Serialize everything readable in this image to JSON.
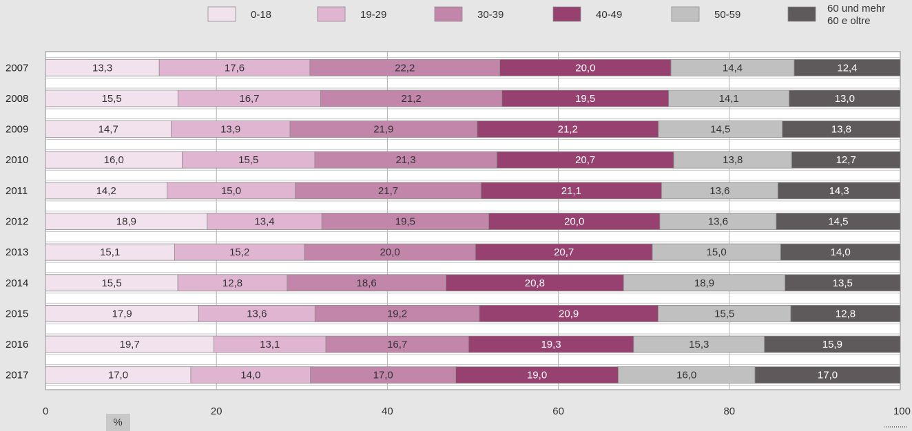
{
  "chart_data": {
    "type": "bar",
    "orientation": "horizontal",
    "stacked": true,
    "unit_label": "%",
    "categories": [
      "2007",
      "2008",
      "2009",
      "2010",
      "2011",
      "2012",
      "2013",
      "2014",
      "2015",
      "2016",
      "2017"
    ],
    "series": [
      {
        "name": "0-18",
        "color": "#f2e2ee",
        "label_color": "#333333",
        "values": [
          "13,3",
          "15,5",
          "14,7",
          "16,0",
          "14,2",
          "18,9",
          "15,1",
          "15,5",
          "17,9",
          "19,7",
          "17,0"
        ]
      },
      {
        "name": "19-29",
        "color": "#e0b5d2",
        "label_color": "#333333",
        "values": [
          "17,6",
          "16,7",
          "13,9",
          "15,5",
          "15,0",
          "13,4",
          "15,2",
          "12,8",
          "13,6",
          "13,1",
          "14,0"
        ]
      },
      {
        "name": "30-39",
        "color": "#c286ab",
        "label_color": "#333333",
        "values": [
          "22,2",
          "21,2",
          "21,9",
          "21,3",
          "21,7",
          "19,5",
          "20,0",
          "18,6",
          "19,2",
          "16,7",
          "17,0"
        ]
      },
      {
        "name": "40-49",
        "color": "#96416f",
        "label_color": "#ffffff",
        "values": [
          "20,0",
          "19,5",
          "21,2",
          "20,7",
          "21,1",
          "20,0",
          "20,7",
          "20,8",
          "20,9",
          "19,3",
          "19,0"
        ]
      },
      {
        "name": "50-59",
        "color": "#c0c0c0",
        "label_color": "#333333",
        "values": [
          "14,4",
          "14,1",
          "14,5",
          "13,8",
          "13,6",
          "13,6",
          "15,0",
          "18,9",
          "15,5",
          "15,3",
          "16,0"
        ]
      },
      {
        "name": [
          "60 und mehr",
          "60 e oltre"
        ],
        "color": "#5e5a5b",
        "label_color": "#ffffff",
        "values": [
          "12,4",
          "13,0",
          "13,8",
          "12,7",
          "14,3",
          "14,5",
          "14,0",
          "13,5",
          "12,8",
          "15,9",
          "17,0"
        ]
      }
    ],
    "x_ticks": [
      "0",
      "20",
      "40",
      "60",
      "80",
      "100"
    ],
    "xlim": [
      0,
      100
    ],
    "grid": true,
    "legend_position": "top"
  }
}
